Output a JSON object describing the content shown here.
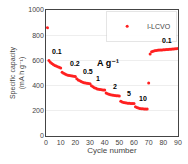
{
  "chart_data": {
    "type": "scatter",
    "xlabel": "Cycle number",
    "ylabel": "Specific capacity\n(mA h g⁻¹)",
    "xlim": [
      0,
      90
    ],
    "ylim": [
      0,
      1000
    ],
    "xticks": [
      0,
      10,
      20,
      30,
      40,
      50,
      60,
      70,
      80,
      90
    ],
    "yticks": [
      0,
      200,
      400,
      600,
      800,
      1000
    ],
    "grid": "y",
    "legend": "upper right",
    "series": [
      {
        "name": "l-LCVO",
        "color": "#FF2020",
        "marker": "circle",
        "x": [
          1,
          2,
          3,
          4,
          5,
          6,
          7,
          8,
          9,
          10,
          11,
          12,
          13,
          14,
          15,
          16,
          17,
          18,
          19,
          20,
          21,
          22,
          23,
          24,
          25,
          26,
          27,
          28,
          29,
          30,
          31,
          32,
          33,
          34,
          35,
          36,
          37,
          38,
          39,
          40,
          41,
          42,
          43,
          44,
          45,
          46,
          47,
          48,
          49,
          50,
          51,
          52,
          53,
          54,
          55,
          56,
          57,
          58,
          59,
          60,
          61,
          62,
          63,
          64,
          65,
          66,
          67,
          68,
          69,
          70,
          71,
          72,
          73,
          74,
          75,
          76,
          77,
          78,
          79,
          80,
          81,
          82,
          83,
          84,
          85,
          86,
          87,
          88,
          89,
          90
        ],
        "values": [
          860,
          600,
          585,
          575,
          568,
          560,
          555,
          550,
          545,
          540,
          505,
          498,
          492,
          487,
          483,
          480,
          478,
          476,
          474,
          472,
          455,
          445,
          438,
          432,
          427,
          423,
          420,
          418,
          416,
          414,
          398,
          390,
          383,
          378,
          374,
          371,
          369,
          367,
          366,
          365,
          342,
          336,
          332,
          328,
          325,
          323,
          321,
          320,
          319,
          318,
          276,
          270,
          266,
          263,
          261,
          260,
          259,
          258,
          257,
          257,
          232,
          226,
          222,
          219,
          217,
          216,
          215,
          214,
          214,
          420,
          650,
          668,
          672,
          676,
          679,
          681,
          682,
          683,
          683,
          684,
          685,
          686,
          687,
          688,
          689,
          690,
          691,
          692,
          693,
          694
        ]
      }
    ],
    "annotations": [
      {
        "text": "A g⁻¹",
        "x": 42,
        "y": 580
      },
      {
        "text": "0.1",
        "x": 3,
        "y": 630
      },
      {
        "text": "0.2",
        "x": 15,
        "y": 528
      },
      {
        "text": "0.5",
        "x": 24,
        "y": 468
      },
      {
        "text": "1",
        "x": 33,
        "y": 412
      },
      {
        "text": "2",
        "x": 44,
        "y": 350
      },
      {
        "text": "5",
        "x": 54,
        "y": 293
      },
      {
        "text": "10",
        "x": 62,
        "y": 252
      },
      {
        "text": "0.1",
        "x": 78,
        "y": 718
      }
    ]
  }
}
